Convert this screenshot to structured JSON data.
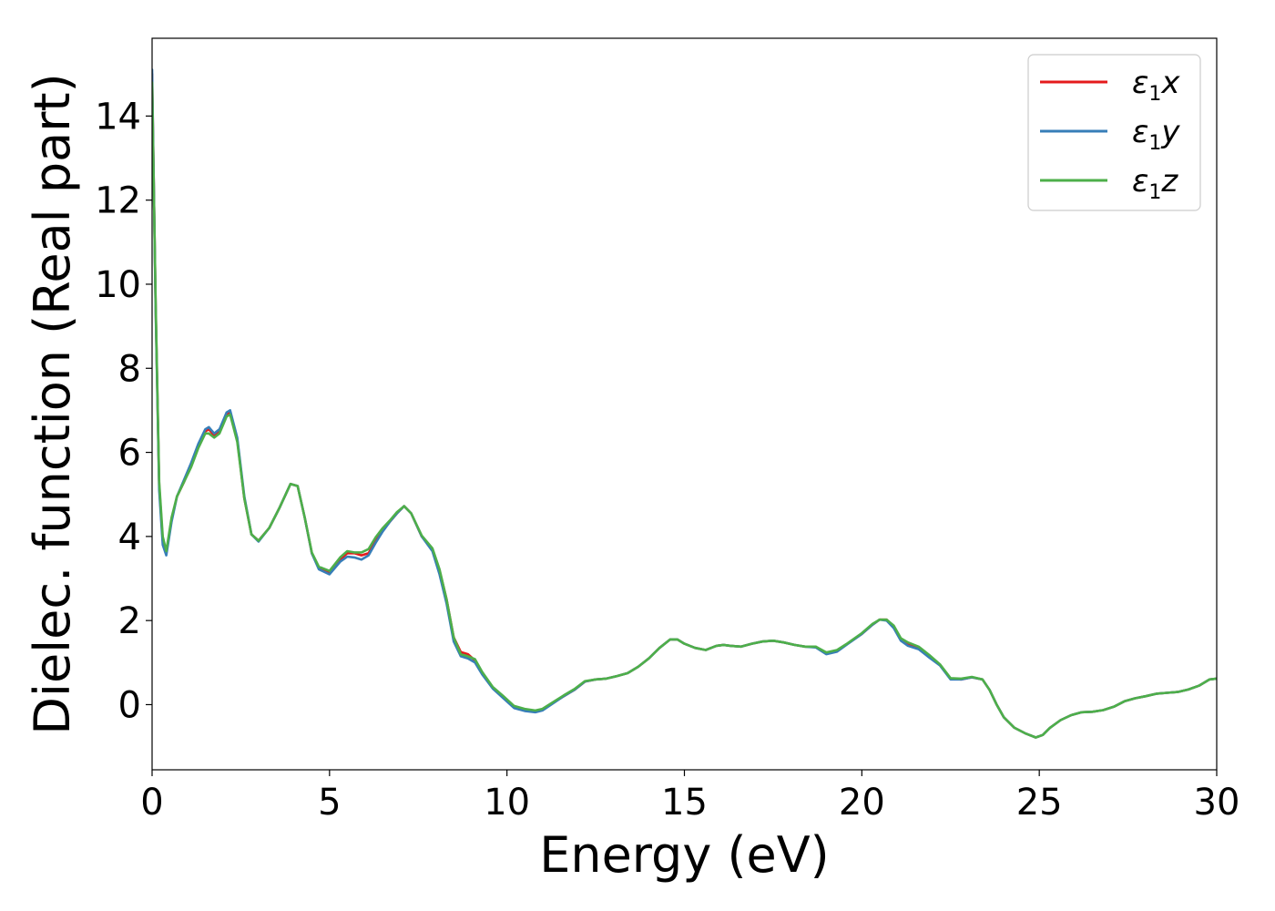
{
  "chart_data": {
    "type": "line",
    "title": "",
    "xlabel": "Energy (eV)",
    "ylabel": "Dielec. function (Real part)",
    "xlim": [
      0,
      30
    ],
    "ylim": [
      -1.55,
      15.85
    ],
    "x_ticks": [
      0,
      5,
      10,
      15,
      20,
      25,
      30
    ],
    "y_ticks": [
      0,
      2,
      4,
      6,
      8,
      10,
      12,
      14
    ],
    "grid": false,
    "legend_position": "top-right",
    "series": [
      {
        "name": "ε1x",
        "name_base": "ε",
        "name_sub": "1",
        "name_var": "x",
        "color": "#e41a1c",
        "x": [
          0.0,
          0.1,
          0.2,
          0.3,
          0.4,
          0.55,
          0.7,
          0.9,
          1.1,
          1.3,
          1.5,
          1.6,
          1.75,
          1.9,
          2.1,
          2.2,
          2.4,
          2.6,
          2.8,
          3.0,
          3.3,
          3.6,
          3.9,
          4.1,
          4.3,
          4.5,
          4.7,
          5.0,
          5.3,
          5.5,
          5.7,
          5.9,
          6.1,
          6.3,
          6.5,
          6.7,
          6.9,
          7.1,
          7.3,
          7.6,
          7.9,
          8.1,
          8.3,
          8.5,
          8.7,
          8.9,
          9.1,
          9.3,
          9.6,
          9.9,
          10.2,
          10.5,
          10.8,
          11.0,
          11.3,
          11.6,
          11.9,
          12.2,
          12.5,
          12.8,
          13.1,
          13.4,
          13.7,
          14.0,
          14.3,
          14.6,
          14.8,
          15.0,
          15.3,
          15.6,
          15.9,
          16.1,
          16.3,
          16.6,
          16.9,
          17.2,
          17.5,
          17.8,
          18.1,
          18.4,
          18.7,
          19.0,
          19.3,
          19.6,
          20.0,
          20.3,
          20.5,
          20.7,
          20.9,
          21.1,
          21.3,
          21.6,
          21.9,
          22.2,
          22.5,
          22.8,
          23.1,
          23.4,
          23.6,
          23.8,
          24.0,
          24.3,
          24.6,
          24.9,
          25.1,
          25.3,
          25.6,
          25.9,
          26.2,
          26.5,
          26.8,
          27.1,
          27.4,
          27.7,
          28.0,
          28.3,
          28.6,
          28.9,
          29.2,
          29.5,
          29.8,
          30.0
        ],
        "y": [
          15.0,
          9.5,
          5.2,
          3.9,
          3.6,
          4.4,
          4.95,
          5.3,
          5.7,
          6.15,
          6.5,
          6.55,
          6.4,
          6.5,
          6.9,
          6.95,
          6.3,
          4.9,
          4.05,
          3.9,
          4.2,
          4.7,
          5.25,
          5.2,
          4.45,
          3.6,
          3.25,
          3.15,
          3.45,
          3.6,
          3.6,
          3.55,
          3.6,
          3.9,
          4.15,
          4.35,
          4.55,
          4.72,
          4.55,
          4.0,
          3.7,
          3.2,
          2.5,
          1.6,
          1.25,
          1.2,
          1.05,
          0.75,
          0.4,
          0.18,
          -0.05,
          -0.12,
          -0.15,
          -0.12,
          0.05,
          0.2,
          0.35,
          0.55,
          0.6,
          0.62,
          0.68,
          0.75,
          0.9,
          1.1,
          1.35,
          1.55,
          1.55,
          1.45,
          1.35,
          1.3,
          1.4,
          1.42,
          1.4,
          1.38,
          1.45,
          1.5,
          1.52,
          1.48,
          1.42,
          1.38,
          1.38,
          1.22,
          1.28,
          1.45,
          1.68,
          1.9,
          2.02,
          2.02,
          1.85,
          1.55,
          1.45,
          1.35,
          1.15,
          0.95,
          0.62,
          0.6,
          0.65,
          0.6,
          0.35,
          0.0,
          -0.3,
          -0.55,
          -0.68,
          -0.78,
          -0.72,
          -0.55,
          -0.37,
          -0.25,
          -0.18,
          -0.17,
          -0.13,
          -0.05,
          0.08,
          0.15,
          0.2,
          0.26,
          0.28,
          0.3,
          0.36,
          0.45,
          0.6,
          0.62
        ]
      },
      {
        "name": "ε1y",
        "name_base": "ε",
        "name_sub": "1",
        "name_var": "y",
        "color": "#377eb8",
        "x": [
          0.0,
          0.1,
          0.2,
          0.3,
          0.4,
          0.55,
          0.7,
          0.9,
          1.1,
          1.3,
          1.5,
          1.6,
          1.75,
          1.9,
          2.1,
          2.2,
          2.4,
          2.6,
          2.8,
          3.0,
          3.3,
          3.6,
          3.9,
          4.1,
          4.3,
          4.5,
          4.7,
          5.0,
          5.3,
          5.5,
          5.7,
          5.9,
          6.1,
          6.3,
          6.5,
          6.7,
          6.9,
          7.1,
          7.3,
          7.6,
          7.9,
          8.1,
          8.3,
          8.5,
          8.7,
          8.9,
          9.1,
          9.3,
          9.6,
          9.9,
          10.2,
          10.5,
          10.8,
          11.0,
          11.3,
          11.6,
          11.9,
          12.2,
          12.5,
          12.8,
          13.1,
          13.4,
          13.7,
          14.0,
          14.3,
          14.6,
          14.8,
          15.0,
          15.3,
          15.6,
          15.9,
          16.1,
          16.3,
          16.6,
          16.9,
          17.2,
          17.5,
          17.8,
          18.1,
          18.4,
          18.7,
          19.0,
          19.3,
          19.6,
          20.0,
          20.3,
          20.5,
          20.7,
          20.9,
          21.1,
          21.3,
          21.6,
          21.9,
          22.2,
          22.5,
          22.8,
          23.1,
          23.4,
          23.6,
          23.8,
          24.0,
          24.3,
          24.6,
          24.9,
          25.1,
          25.3,
          25.6,
          25.9,
          26.2,
          26.5,
          26.8,
          27.1,
          27.4,
          27.7,
          28.0,
          28.3,
          28.6,
          28.9,
          29.2,
          29.5,
          29.8,
          30.0
        ],
        "y": [
          15.1,
          9.4,
          5.1,
          3.8,
          3.55,
          4.35,
          4.95,
          5.35,
          5.75,
          6.2,
          6.55,
          6.6,
          6.45,
          6.55,
          6.95,
          7.0,
          6.35,
          4.95,
          4.05,
          3.88,
          4.2,
          4.7,
          5.25,
          5.2,
          4.45,
          3.6,
          3.22,
          3.1,
          3.4,
          3.52,
          3.5,
          3.45,
          3.55,
          3.85,
          4.12,
          4.35,
          4.55,
          4.72,
          4.55,
          4.0,
          3.65,
          3.1,
          2.4,
          1.5,
          1.15,
          1.1,
          1.0,
          0.72,
          0.38,
          0.15,
          -0.08,
          -0.15,
          -0.18,
          -0.14,
          0.03,
          0.2,
          0.35,
          0.55,
          0.6,
          0.62,
          0.68,
          0.75,
          0.9,
          1.1,
          1.35,
          1.55,
          1.55,
          1.45,
          1.35,
          1.3,
          1.4,
          1.42,
          1.4,
          1.38,
          1.45,
          1.5,
          1.52,
          1.48,
          1.42,
          1.38,
          1.36,
          1.2,
          1.26,
          1.44,
          1.68,
          1.9,
          2.02,
          2.0,
          1.82,
          1.52,
          1.4,
          1.32,
          1.12,
          0.93,
          0.6,
          0.6,
          0.65,
          0.6,
          0.35,
          0.0,
          -0.3,
          -0.55,
          -0.68,
          -0.78,
          -0.72,
          -0.55,
          -0.37,
          -0.25,
          -0.18,
          -0.17,
          -0.13,
          -0.05,
          0.08,
          0.15,
          0.2,
          0.26,
          0.28,
          0.3,
          0.36,
          0.45,
          0.6,
          0.62
        ]
      },
      {
        "name": "ε1z",
        "name_base": "ε",
        "name_sub": "1",
        "name_var": "z",
        "color": "#4daf4a",
        "x": [
          0.0,
          0.1,
          0.2,
          0.3,
          0.4,
          0.55,
          0.7,
          0.9,
          1.1,
          1.3,
          1.5,
          1.6,
          1.75,
          1.9,
          2.1,
          2.2,
          2.4,
          2.6,
          2.8,
          3.0,
          3.3,
          3.6,
          3.9,
          4.1,
          4.3,
          4.5,
          4.7,
          5.0,
          5.3,
          5.5,
          5.7,
          5.9,
          6.1,
          6.3,
          6.5,
          6.7,
          6.9,
          7.1,
          7.3,
          7.6,
          7.9,
          8.1,
          8.3,
          8.5,
          8.7,
          8.9,
          9.1,
          9.3,
          9.6,
          9.9,
          10.2,
          10.5,
          10.8,
          11.0,
          11.3,
          11.6,
          11.9,
          12.2,
          12.5,
          12.8,
          13.1,
          13.4,
          13.7,
          14.0,
          14.3,
          14.6,
          14.8,
          15.0,
          15.3,
          15.6,
          15.9,
          16.1,
          16.3,
          16.6,
          16.9,
          17.2,
          17.5,
          17.8,
          18.1,
          18.4,
          18.7,
          19.0,
          19.3,
          19.6,
          20.0,
          20.3,
          20.5,
          20.7,
          20.9,
          21.1,
          21.3,
          21.6,
          21.9,
          22.2,
          22.5,
          22.8,
          23.1,
          23.4,
          23.6,
          23.8,
          24.0,
          24.3,
          24.6,
          24.9,
          25.1,
          25.3,
          25.6,
          25.9,
          26.2,
          26.5,
          26.8,
          27.1,
          27.4,
          27.7,
          28.0,
          28.3,
          28.6,
          28.9,
          29.2,
          29.5,
          29.8,
          30.0
        ],
        "y": [
          14.8,
          9.6,
          5.3,
          4.0,
          3.65,
          4.45,
          4.95,
          5.3,
          5.65,
          6.1,
          6.45,
          6.45,
          6.35,
          6.45,
          6.85,
          6.9,
          6.25,
          4.9,
          4.05,
          3.9,
          4.2,
          4.7,
          5.25,
          5.2,
          4.45,
          3.62,
          3.28,
          3.18,
          3.5,
          3.65,
          3.62,
          3.62,
          3.7,
          3.98,
          4.2,
          4.38,
          4.58,
          4.72,
          4.55,
          4.02,
          3.72,
          3.22,
          2.5,
          1.6,
          1.2,
          1.15,
          1.08,
          0.78,
          0.42,
          0.2,
          -0.03,
          -0.1,
          -0.14,
          -0.1,
          0.06,
          0.22,
          0.37,
          0.56,
          0.6,
          0.62,
          0.68,
          0.75,
          0.9,
          1.1,
          1.35,
          1.55,
          1.55,
          1.45,
          1.35,
          1.3,
          1.4,
          1.42,
          1.4,
          1.38,
          1.45,
          1.5,
          1.52,
          1.48,
          1.42,
          1.38,
          1.38,
          1.24,
          1.3,
          1.46,
          1.7,
          1.92,
          2.02,
          2.02,
          1.88,
          1.58,
          1.48,
          1.38,
          1.18,
          0.96,
          0.63,
          0.62,
          0.66,
          0.6,
          0.35,
          0.0,
          -0.3,
          -0.55,
          -0.68,
          -0.78,
          -0.72,
          -0.55,
          -0.37,
          -0.25,
          -0.18,
          -0.17,
          -0.13,
          -0.05,
          0.08,
          0.15,
          0.2,
          0.26,
          0.28,
          0.3,
          0.36,
          0.45,
          0.6,
          0.62
        ]
      }
    ]
  }
}
